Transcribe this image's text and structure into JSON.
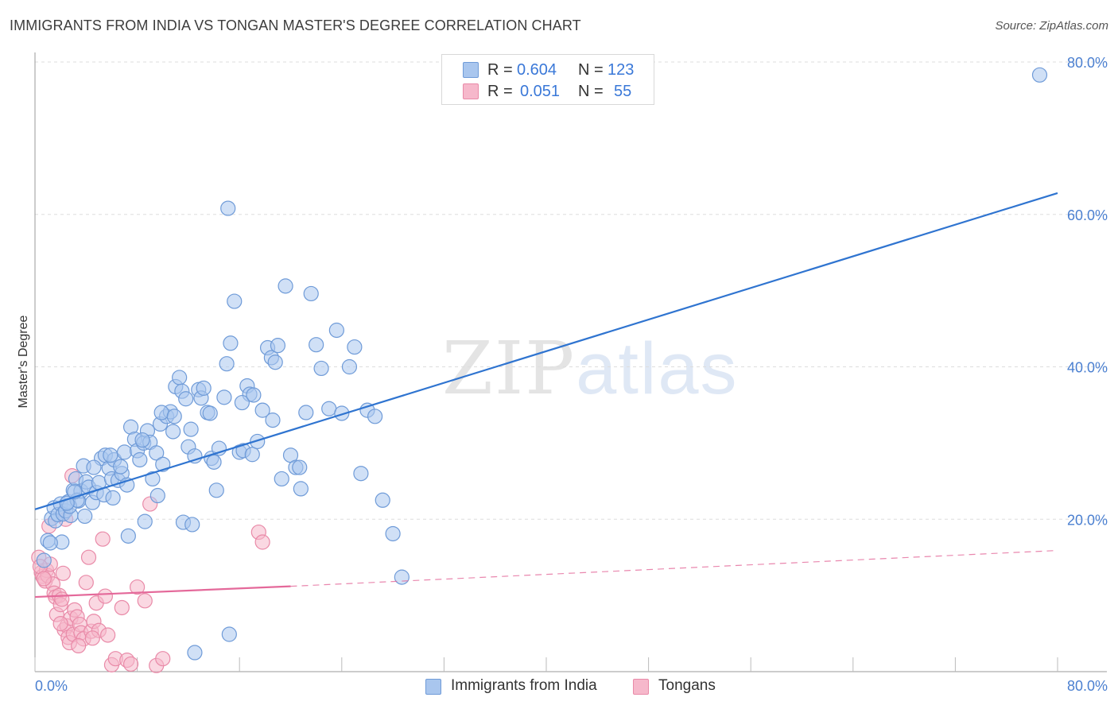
{
  "title": "IMMIGRANTS FROM INDIA VS TONGAN MASTER'S DEGREE CORRELATION CHART",
  "source": "Source: ZipAtlas.com",
  "watermark": {
    "zip": "ZIP",
    "atlas": "atlas"
  },
  "legend": {
    "r_label": "R =",
    "n_label": "N =",
    "rows": [
      {
        "r": "0.604",
        "n": "123"
      },
      {
        "r": "0.051",
        "n": "55"
      }
    ]
  },
  "bottom_legend": [
    "Immigrants from India",
    "Tongans"
  ],
  "colors": {
    "blue_fill": "#a9c6ee",
    "blue_stroke": "#6f9bd8",
    "blue_line": "#2f74d0",
    "pink_fill": "#f6b8cb",
    "pink_stroke": "#e98aa8",
    "pink_line": "#e4699a",
    "tick_text": "#4a7fd0",
    "grid": "#dddddd"
  },
  "chart_data": {
    "type": "scatter",
    "title": "IMMIGRANTS FROM INDIA VS TONGAN MASTER'S DEGREE CORRELATION CHART",
    "xlabel": "",
    "ylabel": "Master's Degree",
    "xlim": [
      0,
      80
    ],
    "ylim": [
      0,
      80
    ],
    "x_tick_labels": [
      "0.0%",
      "80.0%"
    ],
    "y_tick_labels": [
      "20.0%",
      "40.0%",
      "60.0%",
      "80.0%"
    ],
    "y_ticks": [
      20,
      40,
      60,
      80
    ],
    "grid": true,
    "legend_position": "top-center",
    "series": [
      {
        "name": "Immigrants from India",
        "r": 0.604,
        "n": 123,
        "trend": {
          "x": [
            0,
            80
          ],
          "y": [
            21.3,
            62.8
          ],
          "style": "solid"
        },
        "points": [
          [
            1.0,
            17.2
          ],
          [
            1.3,
            20.1
          ],
          [
            1.5,
            21.5
          ],
          [
            1.6,
            19.8
          ],
          [
            1.8,
            20.6
          ],
          [
            2.0,
            22.0
          ],
          [
            2.2,
            20.7
          ],
          [
            2.4,
            21.1
          ],
          [
            2.6,
            22.3
          ],
          [
            2.8,
            20.5
          ],
          [
            3.0,
            23.8
          ],
          [
            3.2,
            25.3
          ],
          [
            3.4,
            22.4
          ],
          [
            3.6,
            23.7
          ],
          [
            3.8,
            27.0
          ],
          [
            4.0,
            24.9
          ],
          [
            4.2,
            24.2
          ],
          [
            4.5,
            22.2
          ],
          [
            4.8,
            23.5
          ],
          [
            5.0,
            24.8
          ],
          [
            5.2,
            28.0
          ],
          [
            5.5,
            28.4
          ],
          [
            5.8,
            26.7
          ],
          [
            6.0,
            25.3
          ],
          [
            6.2,
            27.8
          ],
          [
            6.5,
            25.1
          ],
          [
            6.8,
            26.0
          ],
          [
            7.0,
            28.8
          ],
          [
            7.2,
            24.5
          ],
          [
            7.5,
            32.1
          ],
          [
            7.8,
            30.5
          ],
          [
            8.0,
            29.0
          ],
          [
            8.2,
            27.8
          ],
          [
            8.5,
            30.0
          ],
          [
            8.8,
            31.6
          ],
          [
            9.0,
            30.1
          ],
          [
            9.2,
            25.3
          ],
          [
            9.5,
            28.7
          ],
          [
            9.8,
            32.5
          ],
          [
            10.0,
            27.2
          ],
          [
            10.3,
            33.5
          ],
          [
            10.6,
            34.1
          ],
          [
            10.8,
            31.5
          ],
          [
            11.0,
            37.4
          ],
          [
            11.3,
            38.6
          ],
          [
            11.5,
            36.8
          ],
          [
            11.8,
            35.8
          ],
          [
            12.0,
            29.5
          ],
          [
            12.2,
            31.8
          ],
          [
            12.5,
            28.3
          ],
          [
            12.8,
            37.0
          ],
          [
            13.0,
            35.9
          ],
          [
            13.2,
            37.2
          ],
          [
            13.5,
            34.0
          ],
          [
            13.8,
            28.0
          ],
          [
            14.0,
            27.5
          ],
          [
            14.4,
            29.3
          ],
          [
            14.8,
            36.0
          ],
          [
            15.0,
            40.4
          ],
          [
            15.3,
            43.1
          ],
          [
            15.6,
            48.6
          ],
          [
            16.0,
            28.8
          ],
          [
            16.3,
            29.0
          ],
          [
            16.6,
            37.5
          ],
          [
            17.0,
            28.5
          ],
          [
            17.4,
            30.2
          ],
          [
            17.8,
            34.3
          ],
          [
            18.2,
            42.5
          ],
          [
            18.5,
            41.2
          ],
          [
            18.8,
            40.6
          ],
          [
            19.0,
            42.8
          ],
          [
            19.3,
            25.3
          ],
          [
            19.6,
            50.6
          ],
          [
            20.0,
            28.4
          ],
          [
            20.4,
            26.8
          ],
          [
            20.8,
            24.0
          ],
          [
            21.2,
            34.0
          ],
          [
            21.6,
            49.6
          ],
          [
            22.0,
            42.9
          ],
          [
            22.4,
            39.8
          ],
          [
            23.0,
            34.5
          ],
          [
            23.6,
            44.8
          ],
          [
            24.0,
            33.9
          ],
          [
            24.6,
            40.0
          ],
          [
            25.0,
            42.6
          ],
          [
            25.5,
            26.0
          ],
          [
            26.0,
            34.3
          ],
          [
            26.6,
            33.5
          ],
          [
            27.2,
            22.5
          ],
          [
            28.0,
            18.1
          ],
          [
            28.7,
            12.4
          ],
          [
            2.1,
            17.0
          ],
          [
            2.7,
            21.7
          ],
          [
            3.3,
            22.5
          ],
          [
            3.9,
            20.4
          ],
          [
            4.6,
            26.8
          ],
          [
            5.4,
            23.2
          ],
          [
            6.1,
            22.8
          ],
          [
            7.3,
            17.8
          ],
          [
            8.6,
            19.7
          ],
          [
            9.6,
            23.1
          ],
          [
            11.6,
            19.6
          ],
          [
            12.3,
            19.3
          ],
          [
            14.2,
            23.8
          ],
          [
            15.2,
            4.9
          ],
          [
            15.1,
            60.8
          ],
          [
            12.5,
            2.5
          ],
          [
            78.6,
            78.3
          ],
          [
            16.8,
            36.4
          ],
          [
            18.6,
            33.0
          ],
          [
            2.5,
            22.1
          ],
          [
            3.1,
            23.6
          ],
          [
            5.9,
            28.4
          ],
          [
            6.7,
            26.9
          ],
          [
            8.4,
            30.4
          ],
          [
            9.9,
            34.0
          ],
          [
            10.9,
            33.5
          ],
          [
            13.7,
            33.9
          ],
          [
            16.2,
            35.3
          ],
          [
            17.1,
            36.3
          ],
          [
            20.7,
            26.8
          ],
          [
            1.2,
            16.9
          ],
          [
            0.7,
            14.6
          ]
        ]
      },
      {
        "name": "Tongans",
        "r": 0.051,
        "n": 55,
        "trend": {
          "x": [
            0,
            20,
            80
          ],
          "y": [
            9.8,
            11.2,
            15.9
          ],
          "solid_until": 20
        },
        "points": [
          [
            0.3,
            15.0
          ],
          [
            0.5,
            13.0
          ],
          [
            0.6,
            12.5
          ],
          [
            0.8,
            11.9
          ],
          [
            0.9,
            13.3
          ],
          [
            1.0,
            12.6
          ],
          [
            1.2,
            14.1
          ],
          [
            1.4,
            11.5
          ],
          [
            1.5,
            10.3
          ],
          [
            1.6,
            9.8
          ],
          [
            1.7,
            7.5
          ],
          [
            1.9,
            10.0
          ],
          [
            2.0,
            8.8
          ],
          [
            2.1,
            9.5
          ],
          [
            2.2,
            12.9
          ],
          [
            2.3,
            5.5
          ],
          [
            2.5,
            6.0
          ],
          [
            2.6,
            4.5
          ],
          [
            2.7,
            3.8
          ],
          [
            2.8,
            7.0
          ],
          [
            3.0,
            4.9
          ],
          [
            3.1,
            8.1
          ],
          [
            3.3,
            7.2
          ],
          [
            3.5,
            6.2
          ],
          [
            3.6,
            5.1
          ],
          [
            3.8,
            4.3
          ],
          [
            4.0,
            11.7
          ],
          [
            4.2,
            15.0
          ],
          [
            4.4,
            5.3
          ],
          [
            4.6,
            6.6
          ],
          [
            4.8,
            9.0
          ],
          [
            5.0,
            5.4
          ],
          [
            5.3,
            17.4
          ],
          [
            5.5,
            9.9
          ],
          [
            5.7,
            4.8
          ],
          [
            6.0,
            0.9
          ],
          [
            6.3,
            1.7
          ],
          [
            6.8,
            8.4
          ],
          [
            7.2,
            1.5
          ],
          [
            7.5,
            1.0
          ],
          [
            8.0,
            11.1
          ],
          [
            8.6,
            9.3
          ],
          [
            9.0,
            22.0
          ],
          [
            9.5,
            0.8
          ],
          [
            10.0,
            1.7
          ],
          [
            17.5,
            18.3
          ],
          [
            17.8,
            17.0
          ],
          [
            2.4,
            20.0
          ],
          [
            1.1,
            19.1
          ],
          [
            2.9,
            25.7
          ],
          [
            0.4,
            13.8
          ],
          [
            0.7,
            12.2
          ],
          [
            3.4,
            3.4
          ],
          [
            4.5,
            4.4
          ],
          [
            2.0,
            6.3
          ]
        ]
      }
    ]
  }
}
